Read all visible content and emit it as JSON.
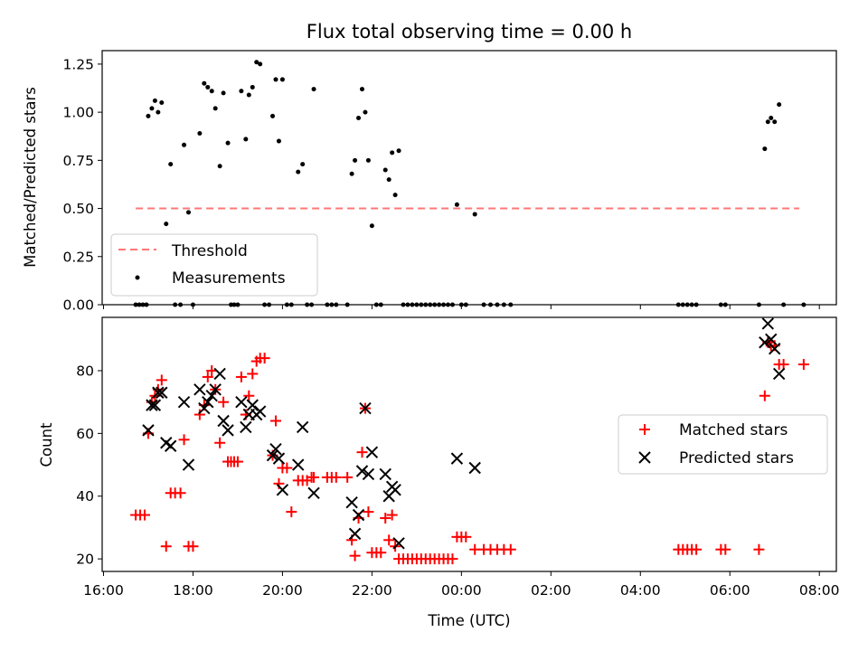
{
  "chart_data": [
    {
      "type": "scatter",
      "title": "Flux total observing time = 0.00 h",
      "ylabel": "Matched/Predicted stars",
      "xlabel": "",
      "ylim": [
        0,
        1.32
      ],
      "yticks": [
        "0.00",
        "0.25",
        "0.50",
        "0.75",
        "1.00",
        "1.25"
      ],
      "ytick_values": [
        0,
        0.25,
        0.5,
        0.75,
        1.0,
        1.25
      ],
      "legend_position": "lower-left",
      "threshold": {
        "name": "Threshold",
        "value": 0.5,
        "x_start": 16.72,
        "x_end": 31.55,
        "color": "#ff7777"
      },
      "series": [
        {
          "name": "Measurements",
          "color": "#000000",
          "points": [
            [
              16.72,
              0
            ],
            [
              16.8,
              0
            ],
            [
              16.88,
              0
            ],
            [
              16.96,
              0
            ],
            [
              17.0,
              0.98
            ],
            [
              17.08,
              1.02
            ],
            [
              17.15,
              1.06
            ],
            [
              17.22,
              1.0
            ],
            [
              17.3,
              1.05
            ],
            [
              17.4,
              0.42
            ],
            [
              17.5,
              0.73
            ],
            [
              17.6,
              0
            ],
            [
              17.72,
              0
            ],
            [
              17.8,
              0.83
            ],
            [
              17.9,
              0.48
            ],
            [
              18.0,
              0
            ],
            [
              18.15,
              0.89
            ],
            [
              18.25,
              1.15
            ],
            [
              18.33,
              1.13
            ],
            [
              18.42,
              1.11
            ],
            [
              18.5,
              1.02
            ],
            [
              18.6,
              0.72
            ],
            [
              18.68,
              1.1
            ],
            [
              18.78,
              0.84
            ],
            [
              18.85,
              0
            ],
            [
              18.92,
              0
            ],
            [
              19.0,
              0
            ],
            [
              19.08,
              1.11
            ],
            [
              19.18,
              0.86
            ],
            [
              19.25,
              1.09
            ],
            [
              19.33,
              1.13
            ],
            [
              19.42,
              1.26
            ],
            [
              19.5,
              1.25
            ],
            [
              19.6,
              0
            ],
            [
              19.7,
              0
            ],
            [
              19.78,
              0.98
            ],
            [
              19.85,
              1.17
            ],
            [
              19.92,
              0.85
            ],
            [
              20.0,
              1.17
            ],
            [
              20.1,
              0
            ],
            [
              20.2,
              0
            ],
            [
              20.35,
              0.69
            ],
            [
              20.45,
              0.73
            ],
            [
              20.55,
              0
            ],
            [
              20.65,
              0
            ],
            [
              20.7,
              1.12
            ],
            [
              21.0,
              0
            ],
            [
              21.1,
              0
            ],
            [
              21.2,
              0
            ],
            [
              21.45,
              0
            ],
            [
              21.55,
              0.68
            ],
            [
              21.62,
              0.75
            ],
            [
              21.7,
              0.97
            ],
            [
              21.78,
              1.12
            ],
            [
              21.85,
              1.0
            ],
            [
              21.92,
              0.75
            ],
            [
              22.0,
              0.41
            ],
            [
              22.1,
              0
            ],
            [
              22.2,
              0
            ],
            [
              22.3,
              0.7
            ],
            [
              22.38,
              0.65
            ],
            [
              22.45,
              0.79
            ],
            [
              22.52,
              0.57
            ],
            [
              22.6,
              0.8
            ],
            [
              22.7,
              0
            ],
            [
              22.8,
              0
            ],
            [
              22.9,
              0
            ],
            [
              23.0,
              0
            ],
            [
              23.1,
              0
            ],
            [
              23.2,
              0
            ],
            [
              23.3,
              0
            ],
            [
              23.4,
              0
            ],
            [
              23.5,
              0
            ],
            [
              23.6,
              0
            ],
            [
              23.7,
              0
            ],
            [
              23.8,
              0
            ],
            [
              23.9,
              0.52
            ],
            [
              24.0,
              0
            ],
            [
              24.1,
              0
            ],
            [
              24.3,
              0.47
            ],
            [
              24.5,
              0
            ],
            [
              24.65,
              0
            ],
            [
              24.8,
              0
            ],
            [
              24.95,
              0
            ],
            [
              25.1,
              0
            ],
            [
              28.85,
              0
            ],
            [
              28.95,
              0
            ],
            [
              29.05,
              0
            ],
            [
              29.15,
              0
            ],
            [
              29.25,
              0
            ],
            [
              29.8,
              0
            ],
            [
              29.9,
              0
            ],
            [
              30.65,
              0
            ],
            [
              30.78,
              0.81
            ],
            [
              30.85,
              0.95
            ],
            [
              30.92,
              0.97
            ],
            [
              31.0,
              0.95
            ],
            [
              31.1,
              1.04
            ],
            [
              31.2,
              0
            ],
            [
              31.65,
              0
            ]
          ]
        }
      ]
    },
    {
      "type": "scatter",
      "title": "",
      "ylabel": "Count",
      "xlabel": "Time (UTC)",
      "xlim": [
        15.97,
        32.38
      ],
      "ylim": [
        16,
        97
      ],
      "xticks": [
        "16:00",
        "18:00",
        "20:00",
        "22:00",
        "00:00",
        "02:00",
        "04:00",
        "06:00",
        "08:00"
      ],
      "xtick_values": [
        16,
        18,
        20,
        22,
        24,
        26,
        28,
        30,
        32
      ],
      "yticks": [
        "20",
        "40",
        "60",
        "80"
      ],
      "ytick_values": [
        20,
        40,
        60,
        80
      ],
      "legend_position": "center-right",
      "series": [
        {
          "name": "Matched stars",
          "marker": "plus",
          "color": "#ff0000",
          "points": [
            [
              16.72,
              34
            ],
            [
              16.82,
              34
            ],
            [
              16.92,
              34
            ],
            [
              17.0,
              60
            ],
            [
              17.08,
              70
            ],
            [
              17.15,
              72
            ],
            [
              17.22,
              74
            ],
            [
              17.3,
              77
            ],
            [
              17.4,
              24
            ],
            [
              17.5,
              41
            ],
            [
              17.6,
              41
            ],
            [
              17.72,
              41
            ],
            [
              17.8,
              58
            ],
            [
              17.9,
              24
            ],
            [
              18.0,
              24
            ],
            [
              18.15,
              66
            ],
            [
              18.25,
              69
            ],
            [
              18.33,
              78
            ],
            [
              18.42,
              80
            ],
            [
              18.5,
              74
            ],
            [
              18.6,
              57
            ],
            [
              18.68,
              70
            ],
            [
              18.78,
              51
            ],
            [
              18.85,
              51
            ],
            [
              18.92,
              51
            ],
            [
              19.0,
              51
            ],
            [
              19.08,
              78
            ],
            [
              19.18,
              66
            ],
            [
              19.25,
              72
            ],
            [
              19.33,
              79
            ],
            [
              19.42,
              83
            ],
            [
              19.5,
              84
            ],
            [
              19.6,
              84
            ],
            [
              19.78,
              53
            ],
            [
              19.85,
              64
            ],
            [
              19.92,
              44
            ],
            [
              20.0,
              49
            ],
            [
              20.1,
              49
            ],
            [
              20.2,
              35
            ],
            [
              20.35,
              45
            ],
            [
              20.45,
              45
            ],
            [
              20.55,
              45
            ],
            [
              20.65,
              46
            ],
            [
              20.7,
              46
            ],
            [
              21.0,
              46
            ],
            [
              21.1,
              46
            ],
            [
              21.2,
              46
            ],
            [
              21.45,
              46
            ],
            [
              21.55,
              26
            ],
            [
              21.62,
              21
            ],
            [
              21.7,
              33
            ],
            [
              21.78,
              54
            ],
            [
              21.85,
              68
            ],
            [
              21.92,
              35
            ],
            [
              22.0,
              22
            ],
            [
              22.1,
              22
            ],
            [
              22.2,
              22
            ],
            [
              22.3,
              33
            ],
            [
              22.38,
              26
            ],
            [
              22.45,
              34
            ],
            [
              22.52,
              24
            ],
            [
              22.6,
              20
            ],
            [
              22.7,
              20
            ],
            [
              22.8,
              20
            ],
            [
              22.9,
              20
            ],
            [
              23.0,
              20
            ],
            [
              23.1,
              20
            ],
            [
              23.2,
              20
            ],
            [
              23.3,
              20
            ],
            [
              23.4,
              20
            ],
            [
              23.5,
              20
            ],
            [
              23.6,
              20
            ],
            [
              23.7,
              20
            ],
            [
              23.8,
              20
            ],
            [
              23.9,
              27
            ],
            [
              24.0,
              27
            ],
            [
              24.1,
              27
            ],
            [
              24.3,
              23
            ],
            [
              24.5,
              23
            ],
            [
              24.65,
              23
            ],
            [
              24.8,
              23
            ],
            [
              24.95,
              23
            ],
            [
              25.1,
              23
            ],
            [
              28.85,
              23
            ],
            [
              28.95,
              23
            ],
            [
              29.05,
              23
            ],
            [
              29.15,
              23
            ],
            [
              29.25,
              23
            ],
            [
              29.8,
              23
            ],
            [
              29.9,
              23
            ],
            [
              30.65,
              23
            ],
            [
              30.78,
              72
            ],
            [
              30.85,
              89
            ],
            [
              30.92,
              88
            ],
            [
              31.0,
              88
            ],
            [
              31.1,
              82
            ],
            [
              31.2,
              82
            ],
            [
              31.65,
              82
            ]
          ]
        },
        {
          "name": "Predicted stars",
          "marker": "x",
          "color": "#000000",
          "points": [
            [
              17.0,
              61
            ],
            [
              17.08,
              69
            ],
            [
              17.15,
              69
            ],
            [
              17.22,
              73
            ],
            [
              17.3,
              73
            ],
            [
              17.4,
              57
            ],
            [
              17.5,
              56
            ],
            [
              17.8,
              70
            ],
            [
              17.9,
              50
            ],
            [
              18.15,
              74
            ],
            [
              18.25,
              68
            ],
            [
              18.33,
              70
            ],
            [
              18.42,
              72
            ],
            [
              18.5,
              74
            ],
            [
              18.6,
              79
            ],
            [
              18.68,
              64
            ],
            [
              18.78,
              61
            ],
            [
              19.08,
              70
            ],
            [
              19.18,
              62
            ],
            [
              19.25,
              66
            ],
            [
              19.33,
              69
            ],
            [
              19.42,
              66
            ],
            [
              19.5,
              67
            ],
            [
              19.78,
              53
            ],
            [
              19.85,
              55
            ],
            [
              19.92,
              52
            ],
            [
              20.0,
              42
            ],
            [
              20.35,
              50
            ],
            [
              20.45,
              62
            ],
            [
              20.7,
              41
            ],
            [
              21.55,
              38
            ],
            [
              21.62,
              28
            ],
            [
              21.7,
              34
            ],
            [
              21.78,
              48
            ],
            [
              21.85,
              68
            ],
            [
              21.92,
              47
            ],
            [
              22.0,
              54
            ],
            [
              22.3,
              47
            ],
            [
              22.38,
              40
            ],
            [
              22.45,
              43
            ],
            [
              22.52,
              42
            ],
            [
              22.6,
              25
            ],
            [
              23.9,
              52
            ],
            [
              24.3,
              49
            ],
            [
              30.78,
              89
            ],
            [
              30.85,
              95
            ],
            [
              30.92,
              90
            ],
            [
              31.0,
              87
            ],
            [
              31.1,
              79
            ]
          ]
        }
      ]
    }
  ]
}
